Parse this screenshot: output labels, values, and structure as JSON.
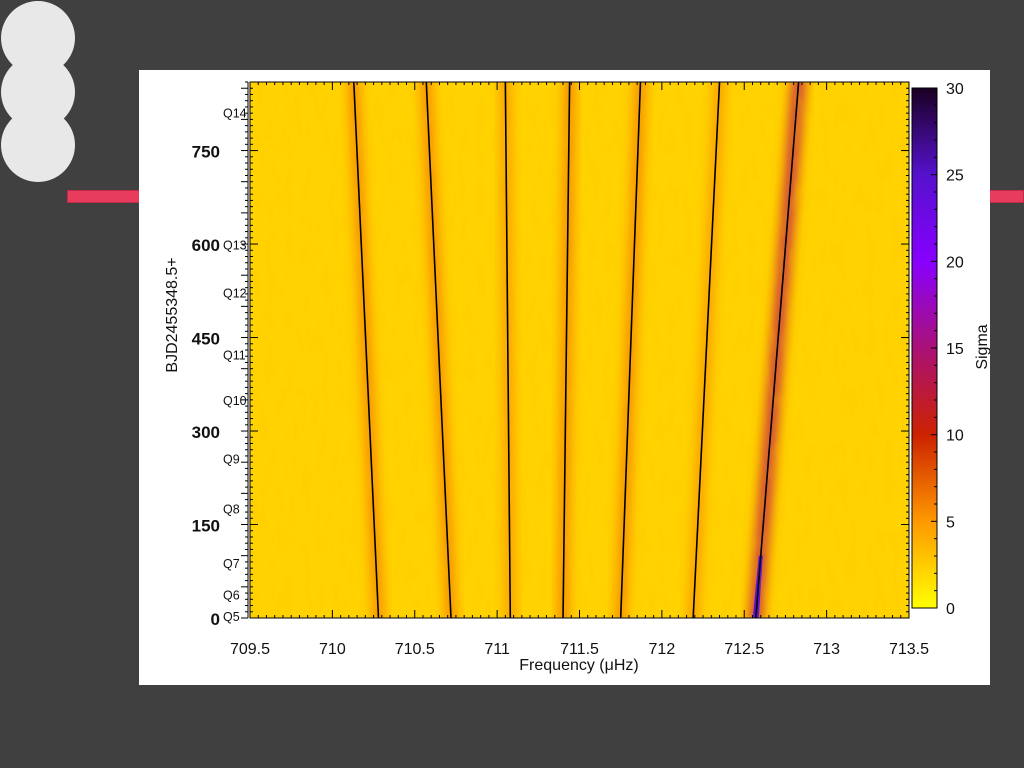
{
  "chart_data": {
    "type": "heatmap",
    "xlabel": "Frequency (μHz)",
    "ylabel": "BJD2455348.5+",
    "xlim": [
      709.5,
      713.5
    ],
    "ylim": [
      0,
      860
    ],
    "x_ticks": [
      "709.5",
      "710",
      "710.5",
      "711",
      "711.5",
      "712",
      "712.5",
      "713",
      "713.5"
    ],
    "x_tick_values": [
      709.5,
      710,
      710.5,
      711,
      711.5,
      712,
      712.5,
      713,
      713.5
    ],
    "y_ticks": [
      "0",
      "150",
      "300",
      "450",
      "600",
      "750"
    ],
    "y_tick_values": [
      0,
      150,
      300,
      450,
      600,
      750
    ],
    "quarters": [
      {
        "label": "Q5",
        "y": 3
      },
      {
        "label": "Q6",
        "y": 38
      },
      {
        "label": "Q7",
        "y": 88
      },
      {
        "label": "Q8",
        "y": 176
      },
      {
        "label": "Q9",
        "y": 256
      },
      {
        "label": "Q10",
        "y": 350
      },
      {
        "label": "Q11",
        "y": 423
      },
      {
        "label": "Q12",
        "y": 522
      },
      {
        "label": "Q13",
        "y": 599
      },
      {
        "label": "Q14",
        "y": 811
      }
    ],
    "colorbar": {
      "label": "Sigma",
      "range": [
        0,
        30
      ],
      "ticks": [
        "0",
        "5",
        "10",
        "15",
        "20",
        "25",
        "30"
      ],
      "tick_values": [
        0,
        5,
        10,
        15,
        20,
        25,
        30
      ],
      "colors": [
        "#ffff00",
        "#ff9900",
        "#cc2200",
        "#aa1177",
        "#8800ff",
        "#5511cc",
        "#1a0022"
      ]
    },
    "series": [
      {
        "x": [
          710.28,
          710.13
        ],
        "y": [
          0,
          860
        ]
      },
      {
        "x": [
          710.72,
          710.57
        ],
        "y": [
          0,
          860
        ]
      },
      {
        "x": [
          711.08,
          711.05
        ],
        "y": [
          0,
          860
        ]
      },
      {
        "x": [
          711.4,
          711.44
        ],
        "y": [
          0,
          860
        ]
      },
      {
        "x": [
          711.75,
          711.87
        ],
        "y": [
          0,
          860
        ]
      },
      {
        "x": [
          712.19,
          712.35
        ],
        "y": [
          0,
          860
        ]
      },
      {
        "x": [
          712.57,
          712.83
        ],
        "y": [
          0,
          860
        ]
      }
    ],
    "ridge_strength": [
      7,
      7,
      6,
      7,
      7,
      6,
      14
    ]
  }
}
